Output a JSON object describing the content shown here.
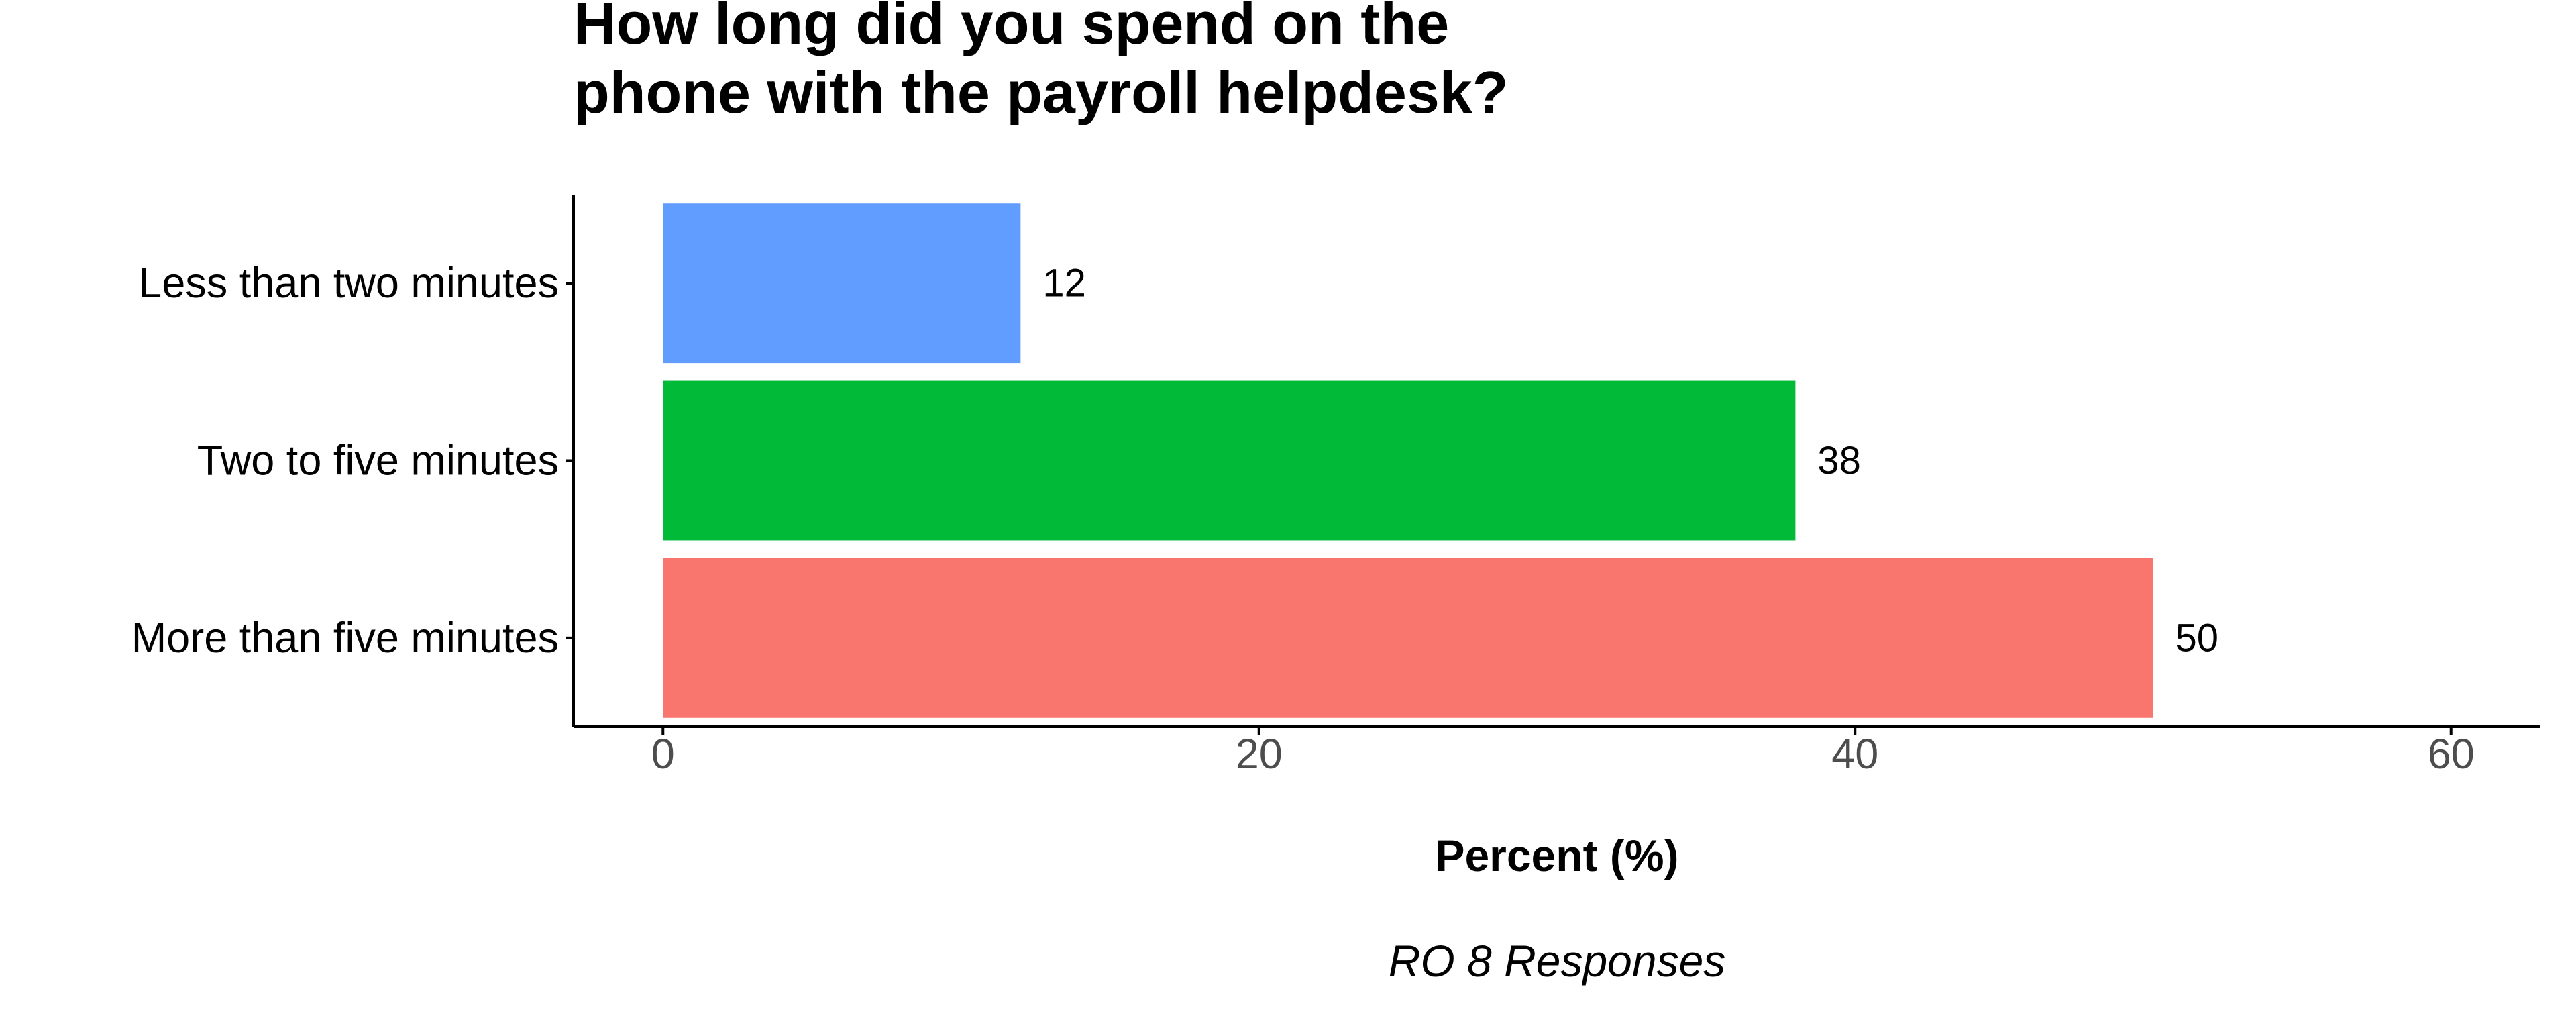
{
  "chart_data": {
    "type": "bar",
    "orientation": "horizontal",
    "title_lines": [
      "How long did you spend on the",
      "phone with the payroll helpdesk?"
    ],
    "categories": [
      "Less than two minutes",
      "Two to five minutes",
      "More than five minutes"
    ],
    "values": [
      12,
      38,
      50
    ],
    "data_labels": [
      "12",
      "38",
      "50"
    ],
    "colors": [
      "#619CFF",
      "#00BA38",
      "#F8766D"
    ],
    "xlabel": "Percent (%)",
    "caption": "RO 8 Responses",
    "xlim": [
      -3,
      63
    ],
    "xticks": [
      0,
      20,
      40,
      60
    ],
    "grid": false,
    "legend": "none"
  }
}
